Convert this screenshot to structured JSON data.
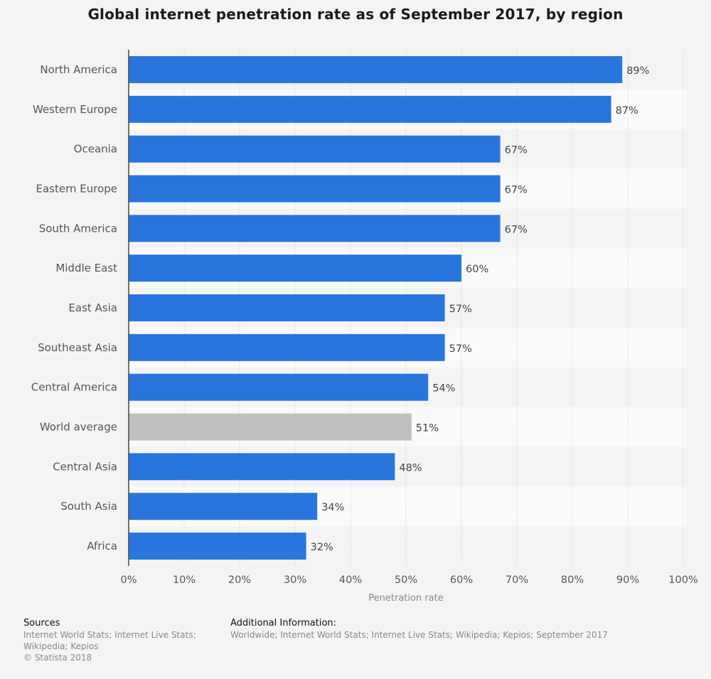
{
  "chart_data": {
    "type": "bar",
    "orientation": "horizontal",
    "title": "Global internet penetration rate as of September 2017, by region",
    "xlabel": "Penetration rate",
    "ylabel": "",
    "xlim": [
      0,
      100
    ],
    "ticks": [
      "0%",
      "10%",
      "20%",
      "30%",
      "40%",
      "50%",
      "60%",
      "70%",
      "80%",
      "90%",
      "100%"
    ],
    "tick_values": [
      0,
      10,
      20,
      30,
      40,
      50,
      60,
      70,
      80,
      90,
      100
    ],
    "value_suffix": "%",
    "grid": "vertical dotted",
    "categories": [
      "North America",
      "Western Europe",
      "Oceania",
      "Eastern Europe",
      "South America",
      "Middle East",
      "East Asia",
      "Southeast Asia",
      "Central America",
      "World average",
      "Central Asia",
      "South Asia",
      "Africa"
    ],
    "values": [
      89,
      87,
      67,
      67,
      67,
      60,
      57,
      57,
      54,
      51,
      48,
      34,
      32
    ],
    "highlight": "World average",
    "colors": {
      "bar": "#2876dd",
      "highlight_bar": "#bfbfbf"
    }
  },
  "footer": {
    "sources_heading": "Sources",
    "sources_lines": [
      "Internet World Stats; Internet Live Stats;",
      "Wikipedia; Kepios",
      "© Statista 2018"
    ],
    "info_heading": "Additional Information:",
    "info_text": "Worldwide; Internet World Stats; Internet Live Stats; Wikipedia; Kepios; September 2017"
  }
}
